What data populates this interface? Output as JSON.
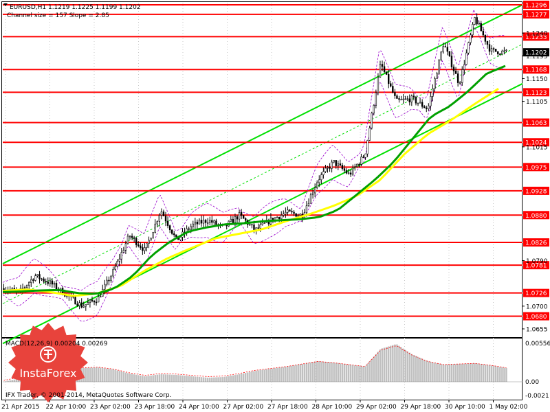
{
  "header": {
    "symbol_line": "EURUSD,H1  1.1219 1.1225 1.1199 1.1202",
    "channel_line": "Channel size = 157 Slope = 2.85"
  },
  "macd": {
    "label": "MACD(12,26,9) 0.00204 0.00269",
    "ticks": [
      "0.00556",
      "0.00",
      "-0.0021"
    ]
  },
  "copyright": "IFX Trader, © 2001-2014, MetaQuotes Software Corp.",
  "logo_text": "InstaForex",
  "colors": {
    "level_line": "#ff0000",
    "channel": "#00e000",
    "ma_fast": "#00a000",
    "ma_slow": "#ffff00",
    "candles": "#000000",
    "bands": "#9900cc",
    "macd_hist": "#c0c0c0",
    "macd_signal": "#ff0000",
    "logo": "#e8433c"
  },
  "chart_data": {
    "type": "candlestick",
    "price_axis": {
      "ylim": [
        1.064,
        1.13
      ],
      "ticks": [
        "1.1240",
        "1.1195",
        "1.1150",
        "1.1105",
        "1.1015",
        "1.0790",
        "1.0700",
        "1.0655"
      ]
    },
    "levels": [
      {
        "label": "1.1296",
        "value": 1.1296
      },
      {
        "label": "1.1277",
        "value": 1.1277
      },
      {
        "label": "1.1233",
        "value": 1.1233
      },
      {
        "label": "1.1168",
        "value": 1.1168
      },
      {
        "label": "1.1123",
        "value": 1.1123
      },
      {
        "label": "1.1063",
        "value": 1.1063
      },
      {
        "label": "1.1024",
        "value": 1.1024
      },
      {
        "label": "1.0975",
        "value": 1.0975
      },
      {
        "label": "1.0928",
        "value": 1.0928
      },
      {
        "label": "1.0880",
        "value": 1.088
      },
      {
        "label": "1.0826",
        "value": 1.0826
      },
      {
        "label": "1.0781",
        "value": 1.0781
      },
      {
        "label": "1.0726",
        "value": 1.0726
      },
      {
        "label": "1.0680",
        "value": 1.068
      }
    ],
    "current_price": {
      "label": "1.1202",
      "value": 1.1202
    },
    "time_axis": [
      "21 Apr 2015",
      "22 Apr 10:00",
      "23 Apr 02:00",
      "23 Apr 18:00",
      "24 Apr 10:00",
      "27 Apr 02:00",
      "27 Apr 18:00",
      "28 Apr 10:00",
      "29 Apr 02:00",
      "29 Apr 18:00",
      "30 Apr 10:00",
      "1 May 02:00"
    ],
    "close_path": [
      1.0735,
      1.0728,
      1.076,
      1.0745,
      1.0722,
      1.07,
      1.0715,
      1.077,
      1.084,
      1.081,
      1.089,
      1.083,
      1.086,
      1.087,
      1.0855,
      1.088,
      1.085,
      1.087,
      1.0885,
      1.088,
      1.095,
      1.0985,
      1.096,
      1.1,
      1.118,
      1.1105,
      1.111,
      1.109,
      1.122,
      1.114,
      1.127,
      1.1205,
      1.1202
    ],
    "ma_fast": [
      1.0728,
      1.0729,
      1.0731,
      1.0732,
      1.0726,
      1.0724,
      1.0735,
      1.076,
      1.08,
      1.0828,
      1.0848,
      1.0856,
      1.0862,
      1.0864,
      1.0868,
      1.087,
      1.0872,
      1.0876,
      1.089,
      1.092,
      1.095,
      1.0985,
      1.103,
      1.1075,
      1.1095,
      1.1125,
      1.116,
      1.1175
    ],
    "ma_slow": [
      1.073,
      1.0733,
      1.0728,
      1.072,
      1.0725,
      1.074,
      1.077,
      1.0795,
      1.0815,
      1.0834,
      1.0843,
      1.0852,
      1.0868,
      1.0882,
      1.0898,
      1.0918,
      1.095,
      1.1,
      1.104,
      1.1068,
      1.11,
      1.113
    ],
    "channel": {
      "upper": {
        "start": 1.0784,
        "end": 1.1296
      },
      "lower": {
        "start": 1.0626,
        "end": 1.114
      }
    },
    "macd_hist_path": [
      0.0,
      0.0005,
      0.001,
      0.0012,
      0.0018,
      0.002,
      0.0021,
      0.0018,
      0.0012,
      0.0008,
      0.0011,
      0.001,
      0.0008,
      0.0006,
      0.0007,
      0.0011,
      0.0016,
      0.0019,
      0.0022,
      0.0026,
      0.003,
      0.0028,
      0.0025,
      0.0022,
      0.0048,
      0.0055,
      0.004,
      0.003,
      0.0025,
      0.0026,
      0.0027,
      0.0024,
      0.002
    ]
  }
}
